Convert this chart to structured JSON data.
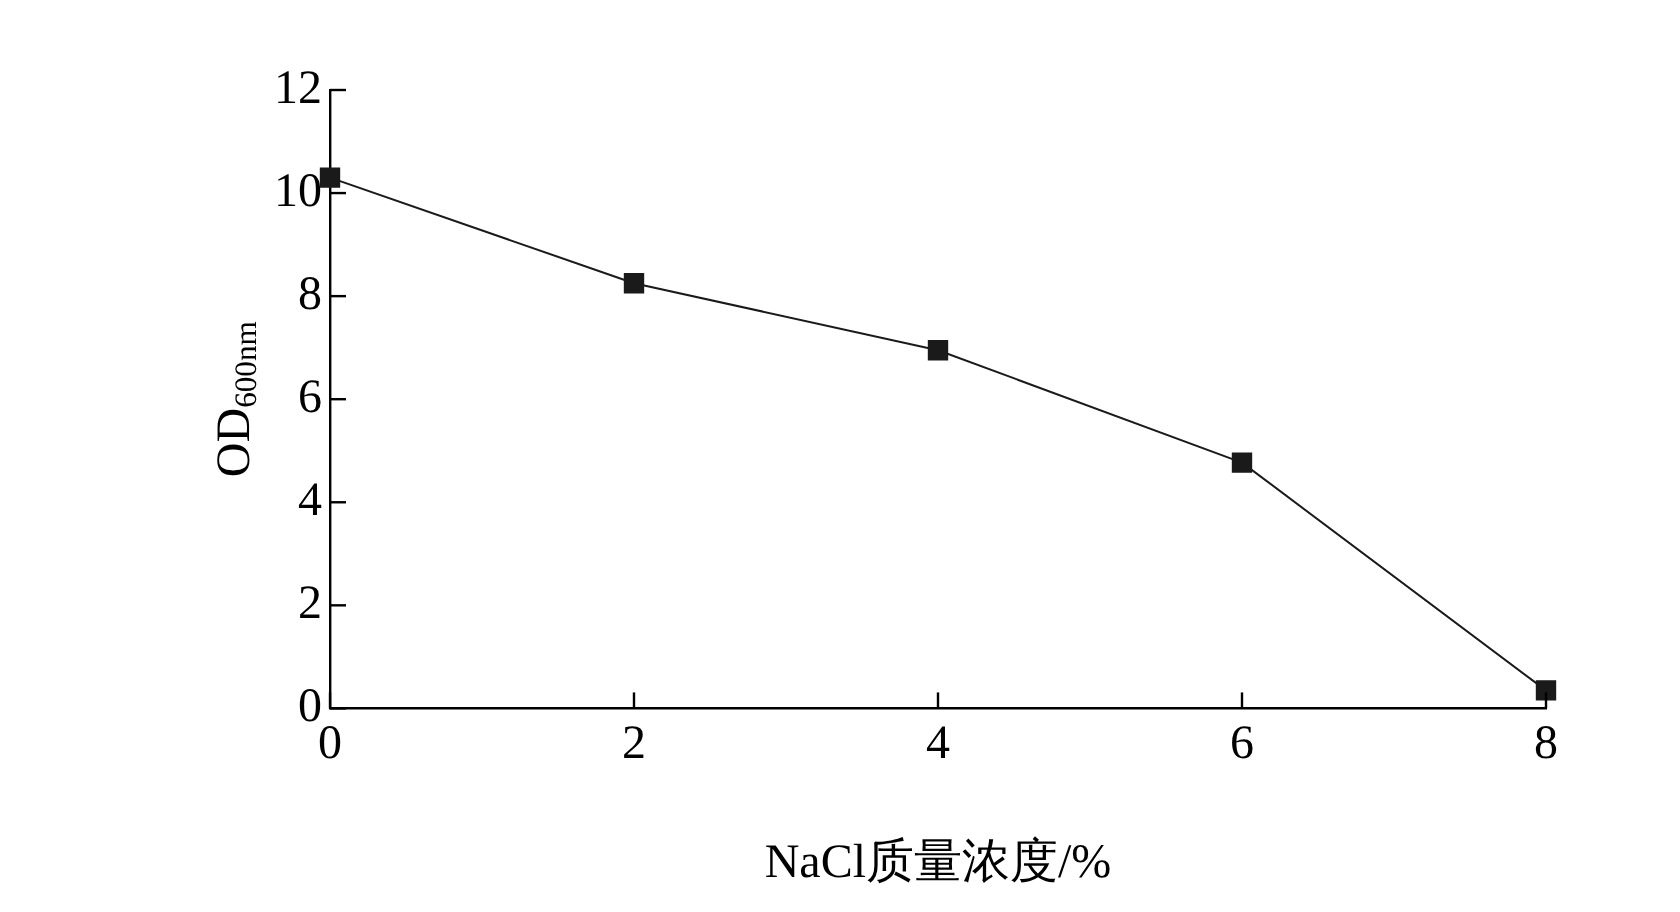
{
  "chart_data": {
    "type": "line",
    "xlabel": "NaCl质量浓度/%",
    "ylabel": "OD$_{600nm}$",
    "x": [
      0,
      2,
      4,
      6,
      8
    ],
    "series": [
      {
        "color": "#1a1a1a",
        "values": [
          10.3,
          8.25,
          6.95,
          4.77,
          0.35
        ]
      }
    ],
    "xlim": [
      0,
      8
    ],
    "xticks": [
      0,
      2,
      4,
      6,
      8
    ],
    "ylim": [
      0,
      12
    ],
    "yticks": [
      0,
      2,
      4,
      6,
      8,
      10,
      12
    ],
    "marker": "square",
    "line_style": "solid",
    "grid": false,
    "legend": false
  }
}
